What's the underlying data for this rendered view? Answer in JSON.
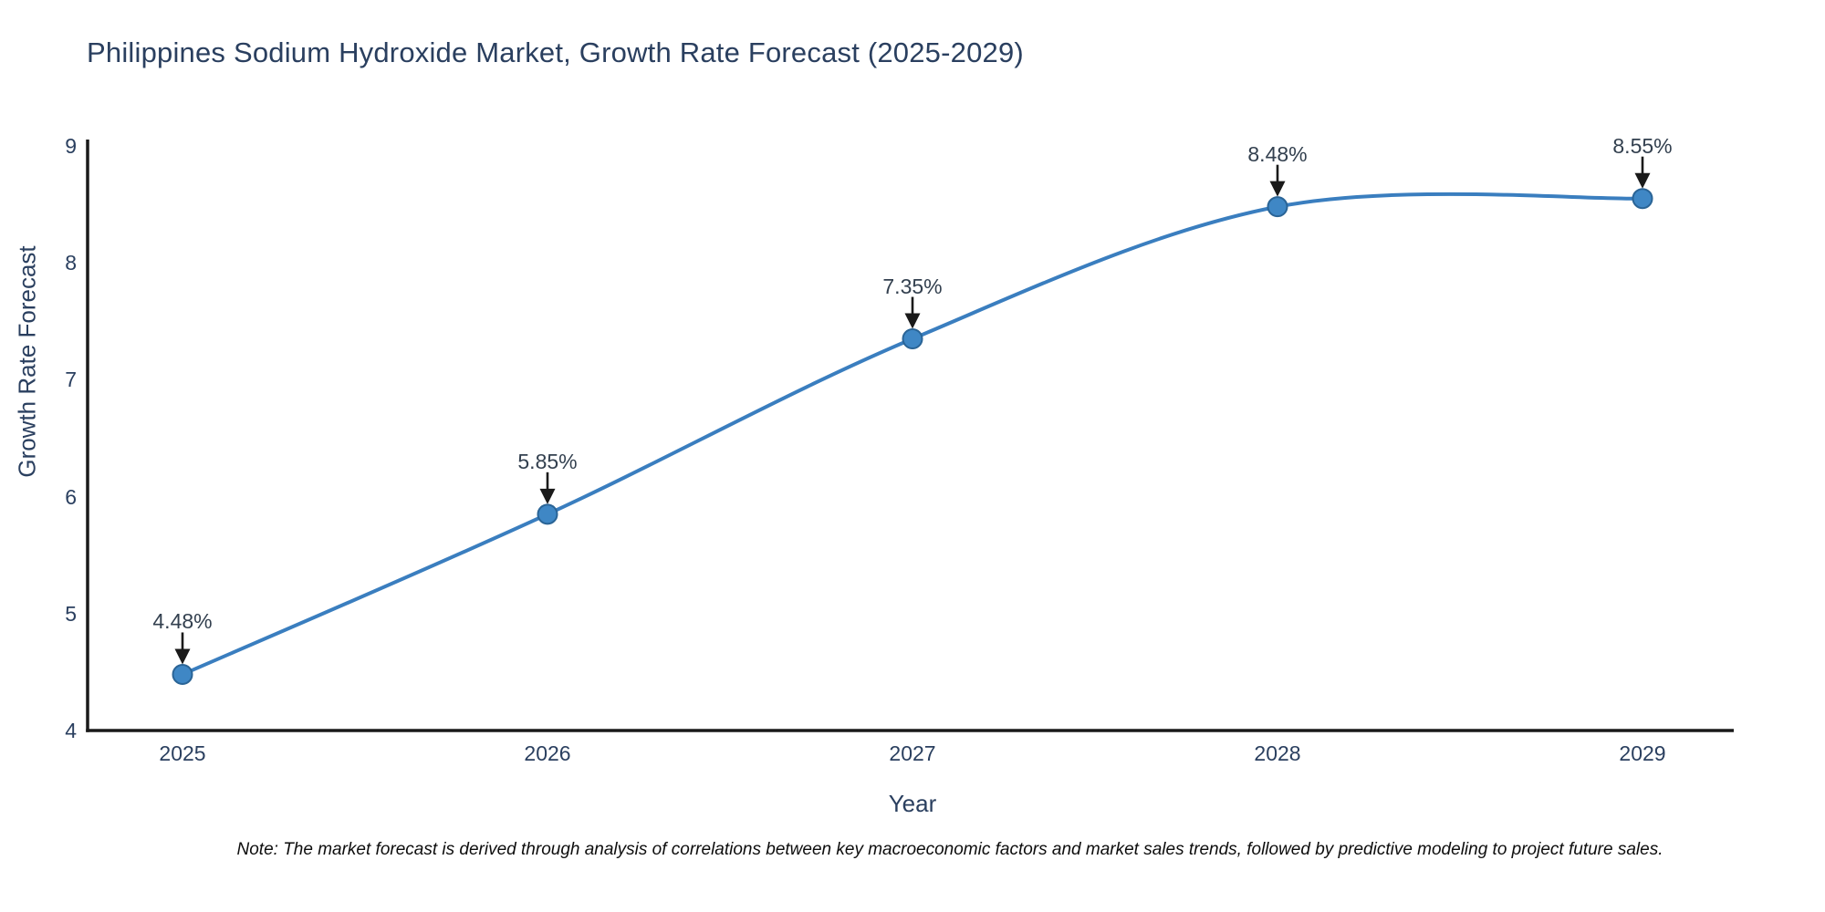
{
  "title": "Philippines Sodium Hydroxide Market, Growth Rate Forecast (2025-2029)",
  "note": "Note: The market forecast is derived through analysis of correlations between key macroeconomic factors and market sales trends, followed by predictive modeling to project future sales.",
  "chart_data": {
    "type": "line",
    "title": "Philippines Sodium Hydroxide Market, Growth Rate Forecast (2025-2029)",
    "x": [
      2025,
      2026,
      2027,
      2028,
      2029
    ],
    "y": [
      4.48,
      5.85,
      7.35,
      8.48,
      8.55
    ],
    "annotations": [
      "4.48%",
      "5.85%",
      "7.35%",
      "8.48%",
      "8.55%"
    ],
    "xticks": [
      "2025",
      "2026",
      "2027",
      "2028",
      "2029"
    ],
    "yticks": [
      "4",
      "5",
      "6",
      "7",
      "8",
      "9"
    ],
    "xlabel": "Year",
    "ylabel": "Growth Rate Forecast",
    "ylim": [
      4,
      9
    ],
    "xlim": [
      2025,
      2029
    ],
    "line_shape": "spline",
    "markers": true,
    "grid": false,
    "legend": "none",
    "colors": {
      "line": "#3a7ebf",
      "marker_fill": "#3f87c5",
      "marker_stroke": "#2a6496",
      "axis": "#1a1a1a",
      "text": "#2a3f5f",
      "annotation_text": "#33404f",
      "arrow": "#1a1a1a",
      "background": "#ffffff"
    }
  }
}
